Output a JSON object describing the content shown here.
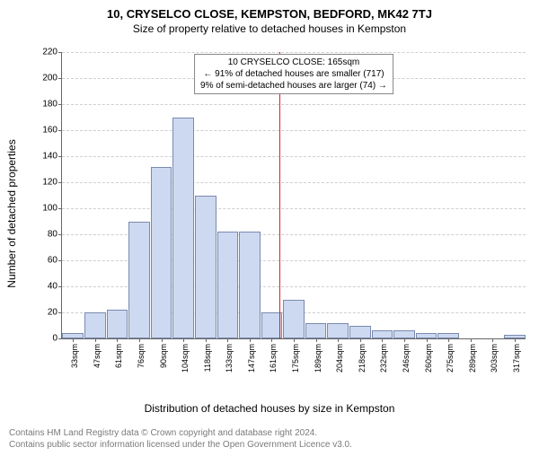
{
  "title_main": "10, CRYSELCO CLOSE, KEMPSTON, BEDFORD, MK42 7TJ",
  "title_sub": "Size of property relative to detached houses in Kempston",
  "chart": {
    "type": "histogram",
    "ylabel": "Number of detached properties",
    "xlabel": "Distribution of detached houses by size in Kempston",
    "ylim": [
      0,
      220
    ],
    "ytick_step": 20,
    "grid_color": "#cfcfcf",
    "axis_color": "#666666",
    "bar_fill": "#cdd9f0",
    "bar_border": "#7a8aaf",
    "background_color": "#ffffff",
    "categories": [
      "33sqm",
      "47sqm",
      "61sqm",
      "76sqm",
      "90sqm",
      "104sqm",
      "118sqm",
      "133sqm",
      "147sqm",
      "161sqm",
      "175sqm",
      "189sqm",
      "204sqm",
      "218sqm",
      "232sqm",
      "246sqm",
      "260sqm",
      "275sqm",
      "289sqm",
      "303sqm",
      "317sqm"
    ],
    "values": [
      4,
      20,
      22,
      90,
      132,
      170,
      110,
      82,
      82,
      20,
      30,
      12,
      12,
      10,
      6,
      6,
      4,
      4,
      0,
      0,
      3
    ],
    "marker": {
      "position_index": 9.35,
      "color": "#e02020",
      "box_lines": [
        "10 CRYSELCO CLOSE: 165sqm",
        "← 91% of detached houses are smaller (717)",
        "9% of semi-detached houses are larger (74) →"
      ],
      "box_border": "#888888",
      "box_bg": "#ffffff",
      "box_fontsize": 10
    }
  },
  "footnote_line1": "Contains HM Land Registry data © Crown copyright and database right 2024.",
  "footnote_line2": "Contains public sector information licensed under the Open Government Licence v3.0."
}
